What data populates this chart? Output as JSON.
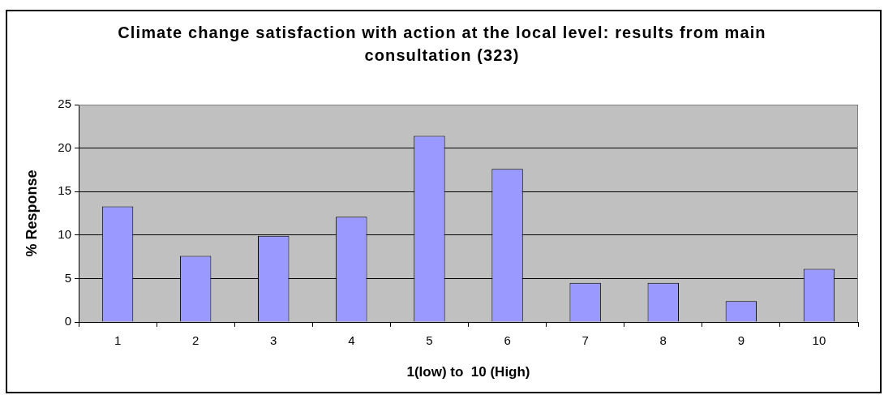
{
  "chart_data": {
    "type": "bar",
    "title": "Climate change satisfaction with action at the local level: results from main consultation (323)",
    "xlabel": "1(low) to  10 (High)",
    "ylabel": "% Response",
    "categories": [
      "1",
      "2",
      "3",
      "4",
      "5",
      "6",
      "7",
      "8",
      "9",
      "10"
    ],
    "values": [
      13.3,
      7.6,
      9.9,
      12.1,
      21.4,
      17.6,
      4.5,
      4.5,
      2.4,
      6.1
    ],
    "color": "#9999ff",
    "ylim": [
      0,
      25
    ],
    "yticks": [
      0,
      5,
      10,
      15,
      20,
      25
    ],
    "grid": "y"
  }
}
